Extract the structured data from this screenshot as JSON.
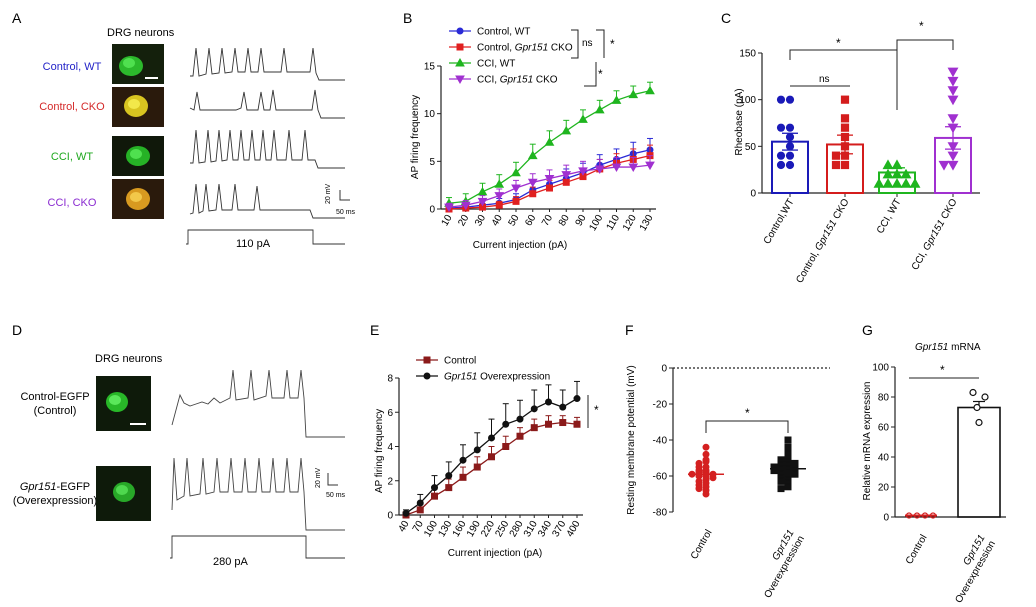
{
  "panels": {
    "A": {
      "letter": "A",
      "title": "DRG neurons",
      "rows": [
        {
          "label": "Control, WT",
          "color": "#2424c8",
          "cell": "green"
        },
        {
          "label": "Control, CKO",
          "color": "#d42a2a",
          "cell": "yellow"
        },
        {
          "label": "CCI, WT",
          "color": "#1fa81f",
          "cell": "green"
        },
        {
          "label": "CCI, CKO",
          "color": "#8a2bd1",
          "cell": "yellow"
        }
      ],
      "scale_v": "20 mV",
      "scale_t": "50 ms",
      "stimulus": "110 pA"
    },
    "D": {
      "letter": "D",
      "title": "DRG neurons",
      "rows": [
        {
          "label1": "Control-EGFP",
          "label2": "(Control)"
        },
        {
          "label1_italic": "Gpr151",
          "label1": "-EGFP",
          "label2": "(Overexpression)"
        }
      ],
      "scale_v": "20 mV",
      "scale_t": "50 ms",
      "stimulus": "280 pA"
    }
  },
  "chart_data": [
    {
      "id": "B",
      "letter": "B",
      "type": "line",
      "xlabel": "Current injection (pA)",
      "ylabel": "AP firing frequency",
      "ylim": [
        0,
        15
      ],
      "yticks": [
        0,
        5,
        10,
        15
      ],
      "categories": [
        10,
        20,
        30,
        40,
        50,
        60,
        70,
        80,
        90,
        100,
        110,
        120,
        130
      ],
      "series": [
        {
          "name": "Control, WT",
          "plain": "Control, WT",
          "italic": "",
          "tail": "",
          "color": "#2a2ad6",
          "marker": "circle",
          "values": [
            0.1,
            0.2,
            0.4,
            0.6,
            1.0,
            2.0,
            2.6,
            3.2,
            3.8,
            4.6,
            5.2,
            5.8,
            6.2
          ],
          "err": [
            0.3,
            0.3,
            0.4,
            0.5,
            0.6,
            0.8,
            0.9,
            1.0,
            1.0,
            1.1,
            1.1,
            1.2,
            1.2
          ]
        },
        {
          "name": "Control, Gpr151 CKO",
          "plain": "Control, ",
          "italic": "Gpr151",
          "tail": " CKO",
          "color": "#e02020",
          "marker": "square",
          "values": [
            0.0,
            0.1,
            0.2,
            0.4,
            0.8,
            1.6,
            2.2,
            2.8,
            3.4,
            4.2,
            4.8,
            5.2,
            5.6
          ],
          "err": [
            0.2,
            0.3,
            0.3,
            0.4,
            0.5,
            0.7,
            0.8,
            0.9,
            0.9,
            1.0,
            1.0,
            1.1,
            1.1
          ]
        },
        {
          "name": "CCI, WT",
          "plain": "CCI, WT",
          "italic": "",
          "tail": "",
          "color": "#1fb51f",
          "marker": "triangle",
          "values": [
            0.6,
            0.8,
            1.8,
            2.6,
            3.8,
            5.6,
            7.0,
            8.2,
            9.4,
            10.4,
            11.4,
            12.0,
            12.4
          ],
          "err": [
            0.6,
            0.8,
            0.9,
            1.0,
            1.1,
            1.2,
            1.2,
            1.1,
            1.0,
            1.0,
            1.0,
            0.9,
            0.9
          ]
        },
        {
          "name": "CCI, Gpr151 CKO",
          "plain": "CCI, ",
          "italic": "Gpr151",
          "tail": " CKO",
          "color": "#a030d0",
          "marker": "triangle-down",
          "values": [
            0.2,
            0.4,
            0.8,
            1.4,
            2.2,
            2.8,
            3.2,
            3.6,
            4.0,
            4.2,
            4.4,
            4.4,
            4.6
          ],
          "err": [
            0.4,
            0.5,
            0.6,
            0.7,
            0.8,
            0.9,
            0.9,
            1.0,
            1.0,
            1.0,
            1.0,
            1.0,
            1.0
          ]
        }
      ],
      "sig": {
        "ns": "ns",
        "star1": "*",
        "star2": "*"
      }
    },
    {
      "id": "C",
      "letter": "C",
      "type": "bar",
      "ylabel": "Rheobase (pA)",
      "ylim": [
        0,
        150
      ],
      "yticks": [
        0,
        50,
        100,
        150
      ],
      "categories": [
        {
          "plain": "Control,WT",
          "italic": "",
          "tail": ""
        },
        {
          "plain": "Control, ",
          "italic": "Gpr151",
          "tail": " CKO"
        },
        {
          "plain": "CCI, WT",
          "italic": "",
          "tail": ""
        },
        {
          "plain": "CCI, ",
          "italic": "Gpr151",
          "tail": " CKO"
        }
      ],
      "values": [
        55,
        52,
        22,
        59
      ],
      "errors": [
        9,
        10,
        5,
        12
      ],
      "colors": [
        "#1a1ab8",
        "#d41c1c",
        "#1fb51f",
        "#a030d0"
      ],
      "markers": [
        "circle",
        "square",
        "triangle",
        "triangle-down"
      ],
      "points": [
        [
          100,
          100,
          70,
          70,
          60,
          50,
          40,
          40,
          30,
          30
        ],
        [
          100,
          80,
          70,
          60,
          50,
          40,
          40,
          30,
          30
        ],
        [
          30,
          30,
          20,
          20,
          20,
          10,
          10,
          10,
          10,
          10
        ],
        [
          130,
          120,
          110,
          100,
          80,
          70,
          50,
          40,
          30,
          30
        ]
      ],
      "sig": {
        "ns": "ns",
        "star1": "*",
        "star2": "*"
      }
    },
    {
      "id": "E",
      "letter": "E",
      "type": "line",
      "xlabel": "Current injection (pA)",
      "ylabel": "AP firing frequency",
      "ylim": [
        0,
        8
      ],
      "yticks": [
        0,
        2,
        4,
        6,
        8
      ],
      "categories": [
        40,
        70,
        100,
        130,
        160,
        190,
        220,
        250,
        280,
        310,
        340,
        370,
        400
      ],
      "series": [
        {
          "name": "Control",
          "plain": "Control",
          "italic": "",
          "tail": "",
          "color": "#8b1a1a",
          "marker": "square",
          "values": [
            0.0,
            0.3,
            1.1,
            1.6,
            2.2,
            2.8,
            3.4,
            4.0,
            4.6,
            5.1,
            5.3,
            5.4,
            5.3
          ],
          "err": [
            0.1,
            0.3,
            0.4,
            0.5,
            0.6,
            0.6,
            0.6,
            0.6,
            0.5,
            0.5,
            0.5,
            0.4,
            0.4
          ]
        },
        {
          "name": "Gpr151 Overexpression",
          "plain": "",
          "italic": "Gpr151",
          "tail": " Overexpression",
          "color": "#111111",
          "marker": "circle",
          "values": [
            0.1,
            0.7,
            1.6,
            2.3,
            3.2,
            3.8,
            4.5,
            5.3,
            5.6,
            6.2,
            6.6,
            6.3,
            6.8
          ],
          "err": [
            0.2,
            0.5,
            0.7,
            0.8,
            0.9,
            1.0,
            1.1,
            1.2,
            1.1,
            1.1,
            1.0,
            1.0,
            1.0
          ]
        }
      ],
      "sig": {
        "star": "*"
      }
    },
    {
      "id": "F",
      "letter": "F",
      "type": "scatter",
      "ylabel": "Resting membrane potential  (mV)",
      "ylim": [
        -80,
        0
      ],
      "yticks": [
        0,
        -20,
        -40,
        -60,
        -80
      ],
      "categories": [
        {
          "plain": "Control",
          "italic": "",
          "tail": ""
        },
        {
          "plain": "",
          "italic": "Gpr151",
          "tail": "Overexpression"
        }
      ],
      "means": [
        -59,
        -56
      ],
      "colors": [
        "#d42020",
        "#111111"
      ],
      "markers": [
        "circle",
        "square"
      ],
      "points": [
        [
          -44,
          -48,
          -51,
          -52,
          -53,
          -55,
          -55,
          -57,
          -57,
          -58,
          -58,
          -59,
          -59,
          -60,
          -60,
          -61,
          -62,
          -63,
          -64,
          -65,
          -66,
          -67,
          -68,
          -70
        ],
        [
          -40,
          -44,
          -47,
          -48,
          -50,
          -51,
          -52,
          -52,
          -53,
          -54,
          -54,
          -55,
          -55,
          -56,
          -56,
          -57,
          -57,
          -58,
          -59,
          -59,
          -60,
          -61,
          -62,
          -63,
          -64,
          -66,
          -67
        ]
      ],
      "sig": {
        "star": "*"
      }
    },
    {
      "id": "G",
      "letter": "G",
      "type": "bar",
      "title_italic": "Gpr151",
      "title_tail": " mRNA",
      "ylabel": "Relative mRNA expression",
      "ylim": [
        0,
        100
      ],
      "yticks": [
        0,
        20,
        40,
        60,
        80,
        100
      ],
      "categories": [
        {
          "plain": "Control",
          "italic": "",
          "tail": ""
        },
        {
          "plain": "",
          "italic": "Gpr151",
          "tail": "Overexpression"
        }
      ],
      "values": [
        1,
        73
      ],
      "errors": [
        0.3,
        4
      ],
      "points": [
        [
          1,
          1,
          1,
          1
        ],
        [
          83,
          80,
          73,
          63
        ]
      ],
      "colors": [
        "#d42020",
        "#111111"
      ],
      "sig": {
        "star": "*"
      }
    }
  ]
}
